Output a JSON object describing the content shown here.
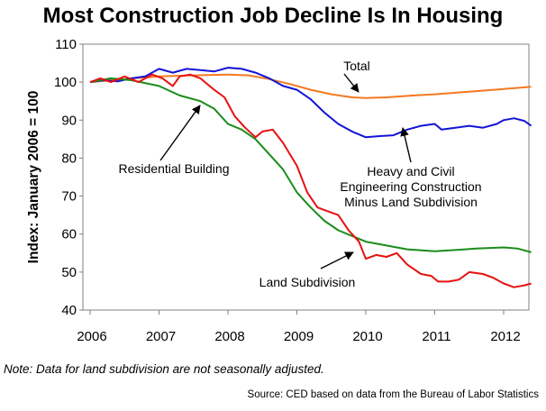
{
  "chart_data": {
    "type": "line",
    "title": "Most Construction Job Decline Is In Housing",
    "ylabel": "Index: January 2006 = 100",
    "xlabel": "",
    "ylim": [
      40,
      110
    ],
    "yticks": [
      40,
      50,
      60,
      70,
      80,
      90,
      100,
      110
    ],
    "xlim": [
      2006,
      2012.4
    ],
    "xticks": [
      "2006",
      "2007",
      "2008",
      "2009",
      "2010",
      "2011",
      "2012"
    ],
    "grid": false,
    "series": [
      {
        "name": "Total",
        "color": "#f47920",
        "points": [
          [
            2006,
            100
          ],
          [
            2006.5,
            100.8
          ],
          [
            2007,
            101.5
          ],
          [
            2007.5,
            101.8
          ],
          [
            2008,
            102
          ],
          [
            2008.3,
            101.8
          ],
          [
            2008.6,
            100.8
          ],
          [
            2008.9,
            99.5
          ],
          [
            2009.2,
            98
          ],
          [
            2009.5,
            96.8
          ],
          [
            2009.8,
            96
          ],
          [
            2010,
            95.8
          ],
          [
            2010.3,
            96
          ],
          [
            2010.7,
            96.5
          ],
          [
            2011,
            96.8
          ],
          [
            2011.5,
            97.5
          ],
          [
            2012,
            98.2
          ],
          [
            2012.4,
            98.8
          ]
        ]
      },
      {
        "name": "Heavy and Civil Engineering Construction Minus Land Subdivision",
        "color": "#1414d8",
        "points": [
          [
            2006,
            100
          ],
          [
            2006.2,
            100.5
          ],
          [
            2006.4,
            100.2
          ],
          [
            2006.6,
            101
          ],
          [
            2006.8,
            101.5
          ],
          [
            2007,
            103.5
          ],
          [
            2007.2,
            102.5
          ],
          [
            2007.4,
            103.5
          ],
          [
            2007.6,
            103.2
          ],
          [
            2007.8,
            102.8
          ],
          [
            2008,
            103.8
          ],
          [
            2008.2,
            103.5
          ],
          [
            2008.4,
            102.5
          ],
          [
            2008.6,
            101
          ],
          [
            2008.8,
            99
          ],
          [
            2009,
            98
          ],
          [
            2009.2,
            95.5
          ],
          [
            2009.4,
            92
          ],
          [
            2009.6,
            89
          ],
          [
            2009.8,
            87
          ],
          [
            2010,
            85.5
          ],
          [
            2010.2,
            85.8
          ],
          [
            2010.4,
            86
          ],
          [
            2010.6,
            87.5
          ],
          [
            2010.8,
            88.5
          ],
          [
            2011,
            89
          ],
          [
            2011.1,
            87.5
          ],
          [
            2011.3,
            88
          ],
          [
            2011.5,
            88.5
          ],
          [
            2011.7,
            88
          ],
          [
            2011.9,
            89
          ],
          [
            2012,
            90
          ],
          [
            2012.15,
            90.5
          ],
          [
            2012.3,
            89.8
          ],
          [
            2012.4,
            88.5
          ]
        ]
      },
      {
        "name": "Residential Building",
        "color": "#1a8c1a",
        "points": [
          [
            2006,
            100
          ],
          [
            2006.3,
            101
          ],
          [
            2006.6,
            100.5
          ],
          [
            2007,
            99
          ],
          [
            2007.3,
            96.5
          ],
          [
            2007.6,
            95
          ],
          [
            2007.8,
            93
          ],
          [
            2008,
            89
          ],
          [
            2008.2,
            87.5
          ],
          [
            2008.4,
            85
          ],
          [
            2008.6,
            81
          ],
          [
            2008.8,
            77
          ],
          [
            2009,
            71
          ],
          [
            2009.2,
            67
          ],
          [
            2009.4,
            63.5
          ],
          [
            2009.6,
            61
          ],
          [
            2009.8,
            59.5
          ],
          [
            2010,
            58
          ],
          [
            2010.3,
            57
          ],
          [
            2010.6,
            56
          ],
          [
            2011,
            55.5
          ],
          [
            2011.3,
            55.8
          ],
          [
            2011.6,
            56.2
          ],
          [
            2012,
            56.5
          ],
          [
            2012.2,
            56.2
          ],
          [
            2012.4,
            55.2
          ]
        ]
      },
      {
        "name": "Land Subdivision",
        "color": "#e81010",
        "points": [
          [
            2006,
            100
          ],
          [
            2006.15,
            101
          ],
          [
            2006.3,
            100
          ],
          [
            2006.5,
            101.5
          ],
          [
            2006.7,
            100
          ],
          [
            2006.9,
            102
          ],
          [
            2007.05,
            101
          ],
          [
            2007.2,
            99
          ],
          [
            2007.3,
            101.5
          ],
          [
            2007.45,
            102
          ],
          [
            2007.6,
            101
          ],
          [
            2007.8,
            98
          ],
          [
            2007.95,
            96
          ],
          [
            2008.1,
            91
          ],
          [
            2008.25,
            88
          ],
          [
            2008.4,
            85.5
          ],
          [
            2008.5,
            87
          ],
          [
            2008.65,
            87.5
          ],
          [
            2008.8,
            84
          ],
          [
            2009,
            78
          ],
          [
            2009.15,
            71
          ],
          [
            2009.3,
            67
          ],
          [
            2009.45,
            66
          ],
          [
            2009.6,
            65
          ],
          [
            2009.75,
            61
          ],
          [
            2009.9,
            58
          ],
          [
            2010.0,
            53.5
          ],
          [
            2010.15,
            54.5
          ],
          [
            2010.3,
            54
          ],
          [
            2010.45,
            55
          ],
          [
            2010.6,
            52
          ],
          [
            2010.8,
            49.5
          ],
          [
            2010.95,
            49
          ],
          [
            2011.05,
            47.5
          ],
          [
            2011.2,
            47.5
          ],
          [
            2011.35,
            48
          ],
          [
            2011.5,
            50
          ],
          [
            2011.7,
            49.5
          ],
          [
            2011.85,
            48.5
          ],
          [
            2012.0,
            47
          ],
          [
            2012.15,
            46
          ],
          [
            2012.3,
            46.5
          ],
          [
            2012.4,
            47
          ]
        ]
      }
    ],
    "annotations": [
      {
        "id": "total",
        "text": [
          "Total"
        ]
      },
      {
        "id": "heavy",
        "text": [
          "Heavy and Civil",
          "Engineering Construction",
          "Minus Land Subdivision"
        ]
      },
      {
        "id": "residential",
        "text": [
          "Residential Building"
        ]
      },
      {
        "id": "land",
        "text": [
          "Land Subdivision"
        ]
      }
    ]
  },
  "note": "Note:  Data for land subdivision are not seasonally adjusted.",
  "source": "Source: CED based on data from the Bureau of Labor Statistics"
}
